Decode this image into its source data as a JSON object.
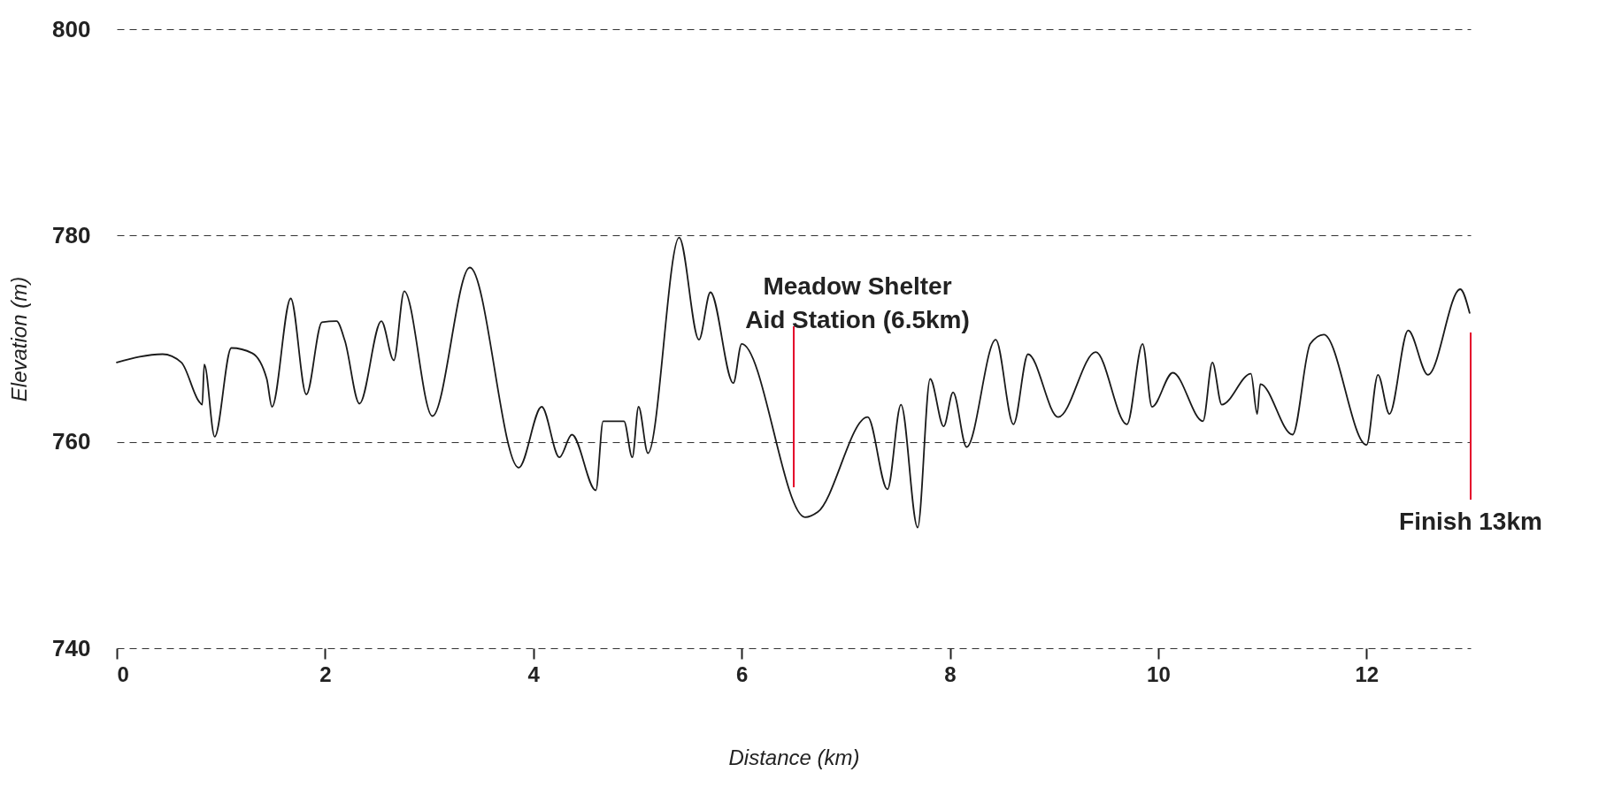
{
  "chart_data": {
    "type": "line",
    "xlabel": "Distance (km)",
    "ylabel": "Elevation (m)",
    "xlim": [
      0,
      13
    ],
    "xticks": [
      0,
      2,
      4,
      6,
      8,
      10,
      12
    ],
    "ylim": [
      740,
      800
    ],
    "yticks": [
      740,
      760,
      780,
      800
    ],
    "grid": "y",
    "line_style": "solid",
    "x": [
      0,
      0.44,
      0.62,
      0.79,
      0.82,
      0.84,
      0.94,
      1.1,
      1.3,
      1.44,
      1.49,
      1.67,
      1.82,
      1.97,
      2.11,
      2.19,
      2.33,
      2.54,
      2.66,
      2.76,
      3.03,
      3.39,
      3.86,
      4.08,
      4.25,
      4.37,
      4.6,
      4.67,
      4.87,
      4.95,
      5.01,
      5.1,
      5.4,
      5.59,
      5.7,
      5.92,
      6.0,
      6.61,
      6.73,
      7.21,
      7.4,
      7.53,
      7.69,
      7.81,
      7.94,
      8.03,
      8.16,
      8.44,
      8.61,
      8.75,
      9.04,
      9.4,
      9.7,
      9.85,
      9.94,
      10.14,
      10.43,
      10.52,
      10.61,
      10.89,
      10.95,
      10.98,
      11.29,
      11.46,
      11.59,
      12.0,
      12.11,
      12.22,
      12.4,
      12.59,
      12.9,
      12.99
    ],
    "series": [
      {
        "color": "#1a1a1a",
        "values": [
          767.7,
          768.5,
          767.7,
          763.9,
          763.6,
          767.5,
          760.5,
          769.1,
          768.6,
          766.1,
          763.4,
          773.9,
          764.6,
          771.6,
          771.7,
          769.8,
          763.7,
          771.7,
          767.9,
          774.6,
          762.5,
          776.9,
          757.5,
          763.4,
          758.5,
          760.7,
          755.3,
          762,
          762,
          758.5,
          763.4,
          758.9,
          779.8,
          769.9,
          774.5,
          765.7,
          769.5,
          752.7,
          753.2,
          762.4,
          755.4,
          763.6,
          751.7,
          766.1,
          761.5,
          764.8,
          759.5,
          769.9,
          761.7,
          768.5,
          762.4,
          768.7,
          761.7,
          769.5,
          763.4,
          766.7,
          762,
          767.7,
          763.6,
          766.6,
          762.7,
          765.6,
          760.7,
          769.5,
          770.4,
          759.7,
          766.5,
          762.7,
          770.8,
          766.5,
          774.8,
          772.5
        ]
      }
    ],
    "ref_lines": [
      {
        "axis": "x",
        "value": 6.5,
        "label": "Meadow Shelter\nAid Station (6.5km)",
        "color": "#e4002b"
      },
      {
        "axis": "x",
        "value": 13,
        "label": "Finish 13km",
        "color": "#e4002b"
      }
    ]
  }
}
